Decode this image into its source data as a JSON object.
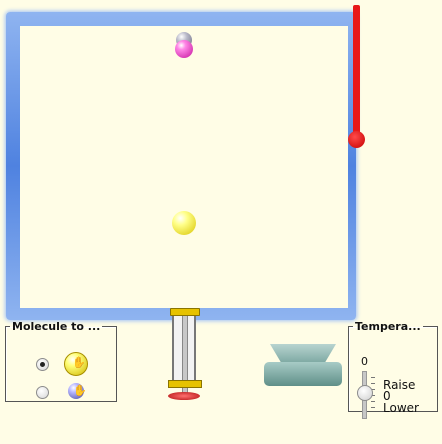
{
  "molecule_panel": {
    "title": "Molecule to ...",
    "options": [
      {
        "name": "yellow-molecule",
        "selected": true,
        "color": "#f0e000"
      },
      {
        "name": "blue-molecule",
        "selected": false,
        "color": "#6a6ac0"
      }
    ]
  },
  "temperature_panel": {
    "title": "Tempera...",
    "value": "0",
    "raise_label": "Raise",
    "zero_label": "0",
    "lower_label": "Lower"
  },
  "thermometer": {
    "color": "#e81818"
  },
  "colors": {
    "container_border": "#5b8ee4",
    "background": "#fffde6",
    "heater": "#7aa6a0",
    "pump_handle": "#c41414"
  }
}
